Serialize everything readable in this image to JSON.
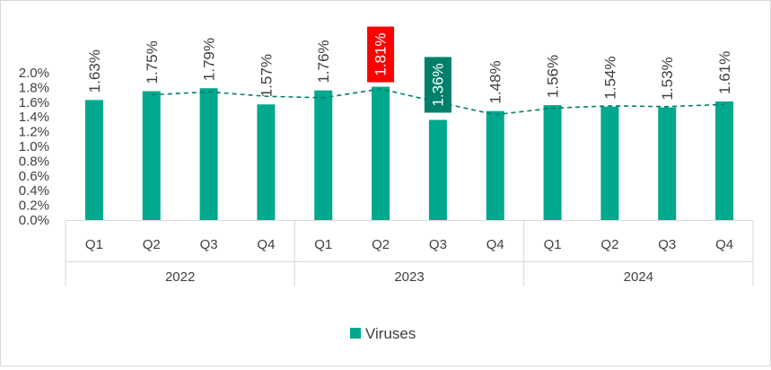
{
  "chart_data": {
    "type": "bar",
    "categories": [
      "Q1",
      "Q2",
      "Q3",
      "Q4",
      "Q1",
      "Q2",
      "Q3",
      "Q4",
      "Q1",
      "Q2",
      "Q3",
      "Q4"
    ],
    "groups": [
      {
        "label": "2022",
        "start": 0,
        "count": 4
      },
      {
        "label": "2023",
        "start": 4,
        "count": 4
      },
      {
        "label": "2024",
        "start": 8,
        "count": 4
      }
    ],
    "series": [
      {
        "name": "Viruses",
        "values": [
          1.63,
          1.75,
          1.79,
          1.57,
          1.76,
          1.81,
          1.36,
          1.48,
          1.56,
          1.54,
          1.53,
          1.61
        ],
        "labels": [
          "1.63%",
          "1.75%",
          "1.79%",
          "1.57%",
          "1.76%",
          "1.81%",
          "1.36%",
          "1.48%",
          "1.56%",
          "1.54%",
          "1.53%",
          "1.61%"
        ],
        "color": "#00a88e"
      }
    ],
    "trend_line": {
      "style": "dashed",
      "color": "#00806b",
      "values": [
        null,
        1.7,
        1.74,
        1.68,
        1.66,
        1.78,
        1.6,
        1.43,
        1.52,
        1.55,
        1.54,
        1.57
      ]
    },
    "highlights": [
      {
        "index": 5,
        "color": "#ff0000",
        "note": "max"
      },
      {
        "index": 6,
        "color": "#00806b",
        "note": "min"
      }
    ],
    "yticks": [
      "0.0%",
      "0.2%",
      "0.4%",
      "0.6%",
      "0.8%",
      "1.0%",
      "1.2%",
      "1.4%",
      "1.6%",
      "1.8%",
      "2.0%"
    ],
    "ylim": [
      0,
      2.0
    ],
    "grid": false,
    "legend": "bottom-center",
    "title": "",
    "xlabel": "",
    "ylabel": ""
  }
}
